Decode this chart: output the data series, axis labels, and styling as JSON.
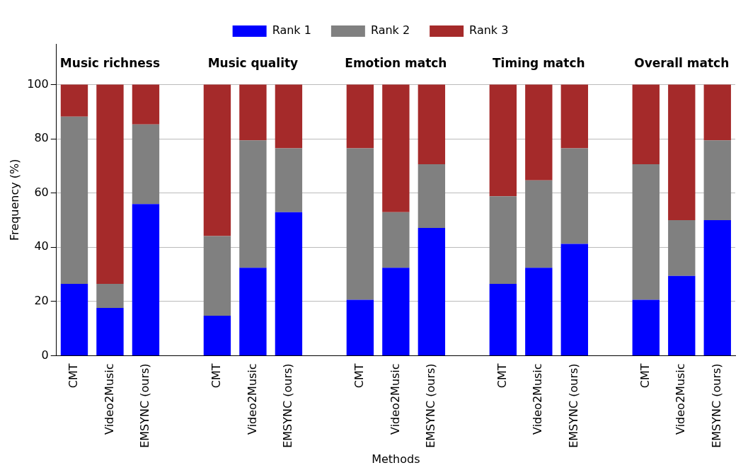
{
  "chart_data": {
    "type": "bar",
    "stacked": true,
    "xlabel": "Methods",
    "ylabel": "Frequency (%)",
    "categories": [
      "CMT",
      "Video2Music",
      "EMSYNC (ours)",
      null,
      "CMT",
      "Video2Music",
      "EMSYNC (ours)",
      null,
      "CMT",
      "Video2Music",
      "EMSYNC (ours)",
      null,
      "CMT",
      "Video2Music",
      "EMSYNC (ours)",
      null,
      "CMT",
      "Video2Music",
      "EMSYNC (ours)"
    ],
    "series": [
      {
        "name": "Rank 1",
        "color": "#0000ff",
        "values": [
          26.5,
          17.6,
          55.9,
          null,
          14.7,
          32.4,
          52.9,
          null,
          20.6,
          32.4,
          47.1,
          null,
          26.5,
          32.4,
          41.2,
          null,
          20.6,
          29.4,
          50.0
        ]
      },
      {
        "name": "Rank 2",
        "color": "#808080",
        "values": [
          61.7,
          8.9,
          29.4,
          null,
          29.4,
          47.0,
          23.6,
          null,
          55.9,
          20.5,
          23.5,
          null,
          32.3,
          32.3,
          35.3,
          null,
          50.0,
          20.6,
          29.4
        ]
      },
      {
        "name": "Rank 3",
        "color": "#a52a2a",
        "values": [
          11.8,
          73.5,
          14.7,
          null,
          55.9,
          20.6,
          23.5,
          null,
          23.5,
          47.1,
          29.4,
          null,
          41.2,
          35.3,
          23.5,
          null,
          29.4,
          50.0,
          20.6
        ]
      }
    ],
    "annotations": [
      "Music richness",
      "Music quality",
      "Emotion match",
      "Timing match",
      "Overall match"
    ],
    "ylim": [
      0,
      115
    ],
    "yticks": [
      0,
      20,
      40,
      60,
      80,
      100
    ],
    "grid": "y",
    "legend": "top"
  }
}
